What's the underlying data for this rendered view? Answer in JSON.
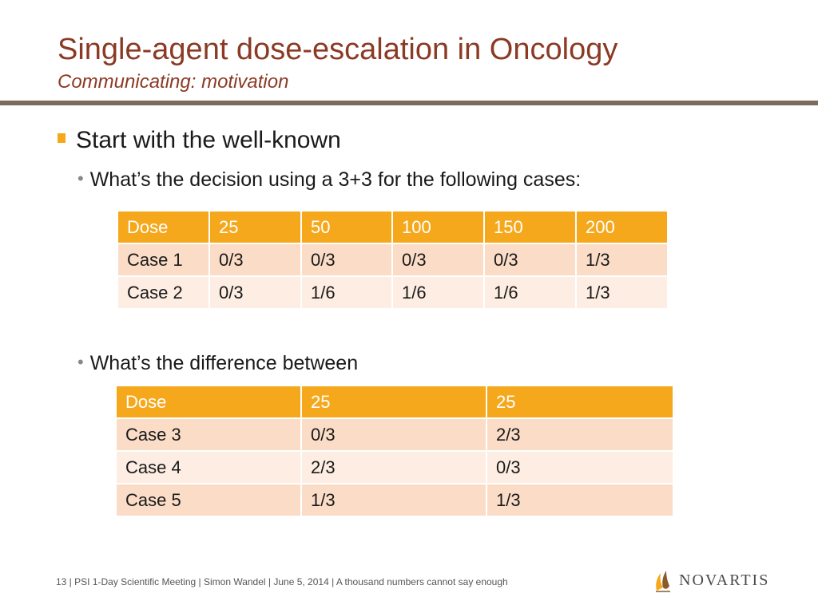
{
  "slide": {
    "title": "Single-agent dose-escalation in Oncology",
    "subtitle": "Communicating: motivation"
  },
  "bullets": {
    "level1": "Start with the well-known",
    "sub1": "What’s the decision using a 3+3 for the following cases:",
    "sub2": "What’s the difference between"
  },
  "table1": {
    "header": [
      "Dose",
      "25",
      "50",
      "100",
      "150",
      "200"
    ],
    "rows": [
      [
        "Case 1",
        "0/3",
        "0/3",
        "0/3",
        "0/3",
        "1/3"
      ],
      [
        "Case 2",
        "0/3",
        "1/6",
        "1/6",
        "1/6",
        "1/3"
      ]
    ]
  },
  "table2": {
    "header": [
      "Dose",
      "25",
      "25"
    ],
    "rows": [
      [
        "Case 3",
        "0/3",
        "2/3"
      ],
      [
        "Case 4",
        "2/3",
        "0/3"
      ],
      [
        "Case 5",
        "1/3",
        "1/3"
      ]
    ]
  },
  "footer": {
    "text": "13  | PSI 1-Day Scientific Meeting | Simon Wandel | June 5, 2014 | A thousand numbers cannot say enough"
  },
  "logo": {
    "wordmark": "NOVARTIS",
    "icon": "novartis-flame-icon",
    "colors": {
      "flame_orange": "#F5A81C",
      "flame_brown": "#8B5A2B"
    }
  },
  "colors": {
    "title": "#8B3A24",
    "accent": "#F5A81C",
    "rule": "#7d6b5d",
    "row_odd": "#FBDCC7",
    "row_even": "#FDEDE2"
  }
}
